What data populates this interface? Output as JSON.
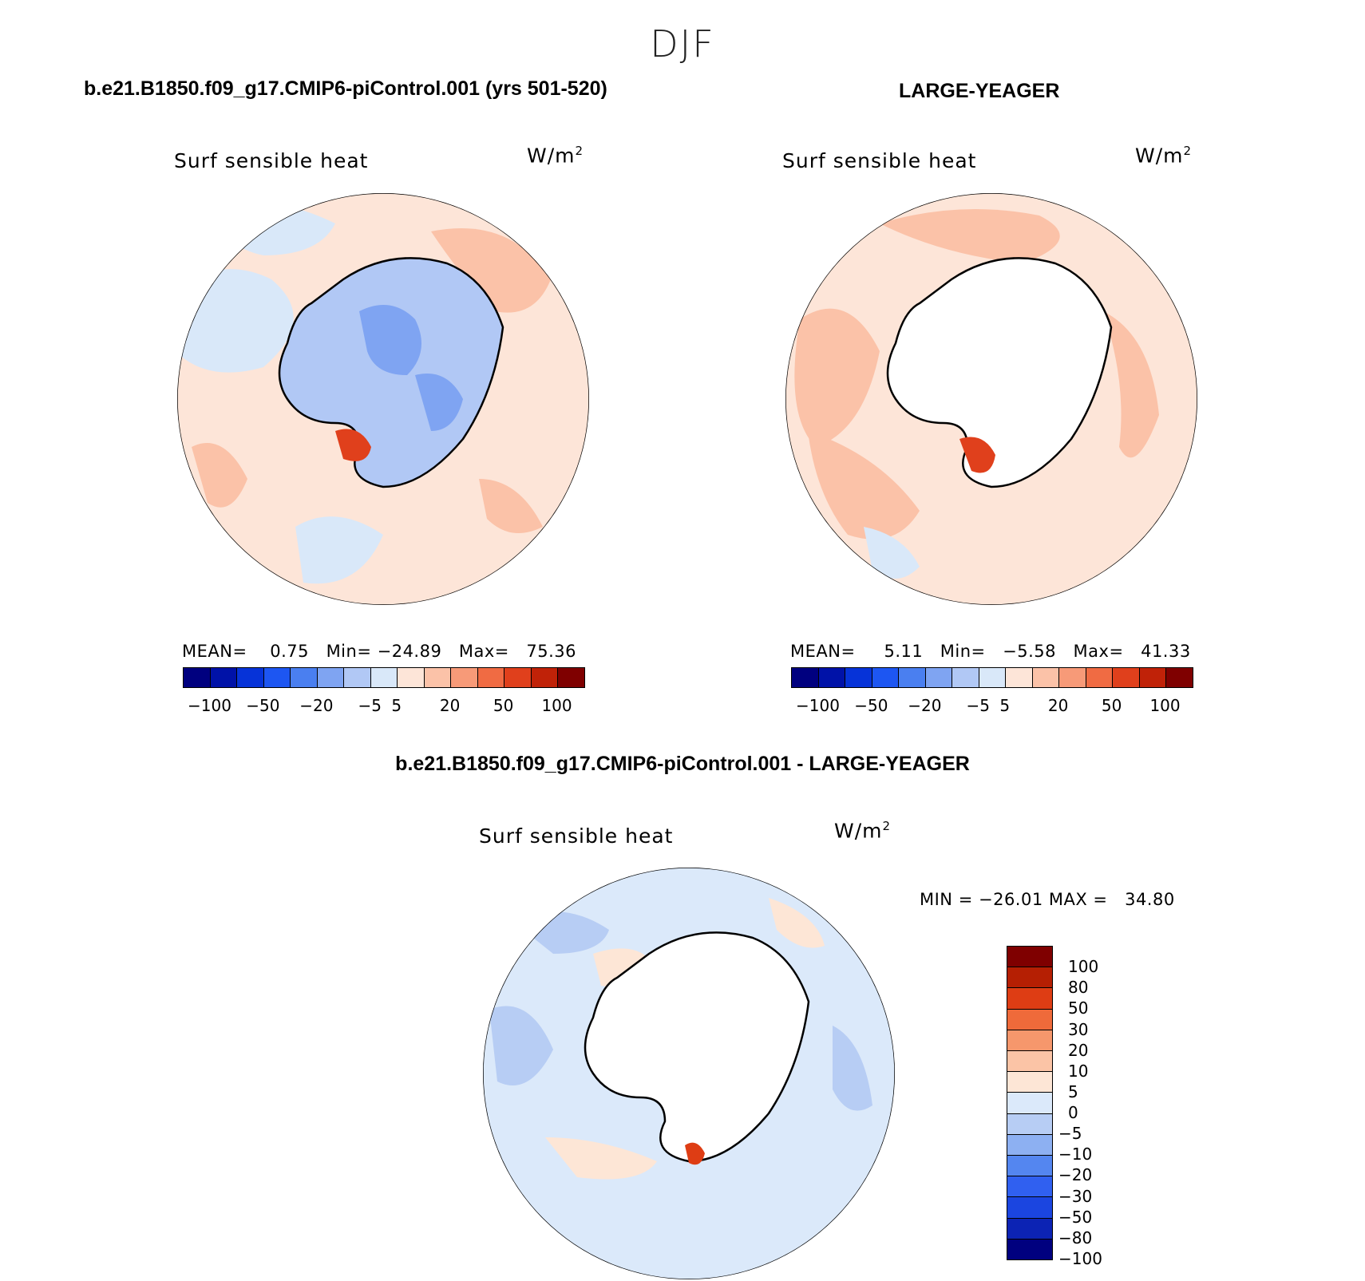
{
  "figure": {
    "season": "DJF"
  },
  "colors": {
    "palette_14": [
      "#00007f",
      "#0012a8",
      "#0633d8",
      "#1d56f2",
      "#4a7ff0",
      "#7fa4f2",
      "#b1c8f5",
      "#d9e8f9",
      "#fde5d8",
      "#fbc2a8",
      "#f79a78",
      "#f06b43",
      "#e0401c",
      "#c02208",
      "#7f0000"
    ],
    "diff_palette": [
      "#00007f",
      "#0c23b4",
      "#1b45e0",
      "#3060f0",
      "#5486f0",
      "#8db0f2",
      "#b7cdf4",
      "#dbe9fa",
      "#fde6d6",
      "#fbc4a6",
      "#f6976c",
      "#ef6a3a",
      "#de3d14",
      "#b51f03",
      "#7f0000"
    ]
  },
  "panels": [
    {
      "case_title": "b.e21.B1850.f09_g17.CMIP6-piControl.001 (yrs 501-520)",
      "variable": "Surf sensible heat",
      "units_base": "W/m",
      "units_exp": "2",
      "stats": {
        "mean_label": "MEAN=",
        "mean_value": "0.75",
        "min_label": "Min=",
        "min_value": "−24.89",
        "max_label": "Max=",
        "max_value": "75.36"
      },
      "colorbar_ticks": [
        "−100",
        "−50",
        "−20",
        "−5",
        "5",
        "20",
        "50",
        "100"
      ],
      "land_filled": true
    },
    {
      "case_title": "LARGE-YEAGER",
      "variable": "Surf sensible heat",
      "units_base": "W/m",
      "units_exp": "2",
      "stats": {
        "mean_label": "MEAN=",
        "mean_value": "5.11",
        "min_label": "Min=",
        "min_value": "−5.58",
        "max_label": "Max=",
        "max_value": "41.33"
      },
      "colorbar_ticks": [
        "−100",
        "−50",
        "−20",
        "−5",
        "5",
        "20",
        "50",
        "100"
      ],
      "land_filled": false
    }
  ],
  "difference": {
    "case_title": "b.e21.B1850.f09_g17.CMIP6-piControl.001 - LARGE-YEAGER",
    "variable": "Surf sensible heat",
    "units_base": "W/m",
    "units_exp": "2",
    "minmax": {
      "min_label": "MIN =",
      "min_value": "−26.01",
      "max_label": "MAX =",
      "max_value": "34.80"
    },
    "colorbar_ticks": [
      "100",
      "80",
      "50",
      "30",
      "20",
      "10",
      "5",
      "0",
      "−5",
      "−10",
      "−20",
      "−30",
      "−50",
      "−80",
      "−100"
    ]
  }
}
